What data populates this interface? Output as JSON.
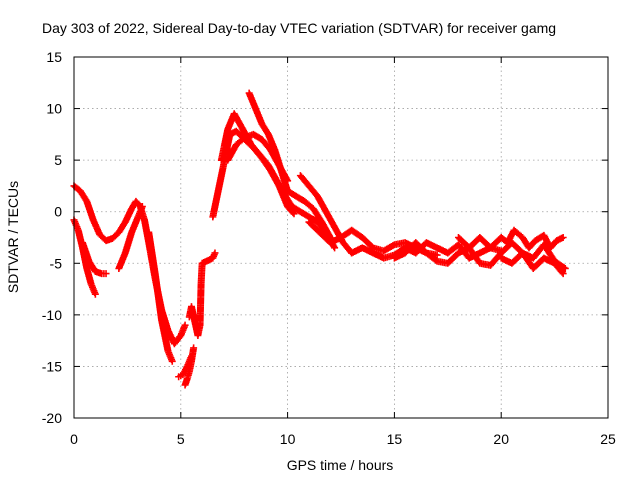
{
  "chart_data": {
    "type": "scatter",
    "title": "Day 303 of 2022, Sidereal Day-to-day VTEC variation (SDTVAR) for receiver gamg",
    "xlabel": "GPS time / hours",
    "ylabel": "SDTVAR / TECUs",
    "xlim": [
      0,
      25
    ],
    "ylim": [
      -20,
      15
    ],
    "xticks": [
      0,
      5,
      10,
      15,
      20,
      25
    ],
    "yticks": [
      -20,
      -15,
      -10,
      -5,
      0,
      5,
      10,
      15
    ],
    "grid": true,
    "marker": "+",
    "color": "#ff0000",
    "series": [
      {
        "name": "satellite-track-1",
        "x": [
          0.0,
          0.3,
          0.6,
          0.9,
          1.2,
          1.5,
          1.8,
          2.1,
          2.4,
          2.7,
          2.9,
          3.1,
          3.3,
          3.5,
          3.8,
          4.1,
          4.4,
          4.7,
          5.0,
          5.2
        ],
        "y": [
          2.5,
          2.0,
          1.0,
          -0.8,
          -2.2,
          -2.8,
          -2.6,
          -2.0,
          -1.0,
          0.3,
          1.0,
          0.5,
          -0.8,
          -3.0,
          -6.5,
          -9.5,
          -11.5,
          -12.8,
          -12.0,
          -11.0
        ]
      },
      {
        "name": "satellite-track-2",
        "x": [
          0.0,
          0.2,
          0.4,
          0.6,
          0.8,
          1.0
        ],
        "y": [
          -0.8,
          -1.8,
          -3.5,
          -5.5,
          -7.0,
          -8.0
        ]
      },
      {
        "name": "satellite-track-3",
        "x": [
          0.4,
          0.7,
          1.0,
          1.3,
          1.5
        ],
        "y": [
          -3.0,
          -4.8,
          -5.8,
          -6.0,
          -6.0
        ]
      },
      {
        "name": "satellite-track-4",
        "x": [
          2.1,
          2.4,
          2.7,
          3.0,
          3.2
        ],
        "y": [
          -5.5,
          -4.0,
          -2.0,
          -0.5,
          0.5
        ]
      },
      {
        "name": "satellite-track-5",
        "x": [
          3.5,
          3.8,
          4.1,
          4.4,
          4.6
        ],
        "y": [
          -2.0,
          -6.0,
          -10.5,
          -13.5,
          -14.5
        ]
      },
      {
        "name": "satellite-track-6",
        "x": [
          4.9,
          5.1,
          5.3,
          5.5
        ],
        "y": [
          -16.0,
          -15.8,
          -15.0,
          -14.0
        ]
      },
      {
        "name": "satellite-track-7",
        "x": [
          5.2,
          5.3,
          5.4,
          5.5,
          5.6
        ],
        "y": [
          -16.8,
          -16.2,
          -15.5,
          -14.5,
          -13.2
        ]
      },
      {
        "name": "isolated-points",
        "x": [
          5.4,
          5.5,
          5.8,
          5.9,
          5.95,
          6.0,
          6.5,
          6.6
        ],
        "y": [
          -10.2,
          -9.2,
          -12.0,
          -11.0,
          -7.0,
          -5.0,
          -4.5,
          -4.0
        ]
      },
      {
        "name": "satellite-track-8",
        "x": [
          6.5,
          6.8,
          7.1,
          7.3,
          7.6,
          8.0,
          8.4,
          8.8,
          9.2,
          9.6,
          10.0,
          10.3
        ],
        "y": [
          -0.5,
          2.5,
          5.5,
          7.5,
          7.8,
          7.0,
          6.2,
          5.2,
          4.0,
          2.5,
          0.5,
          -0.2
        ]
      },
      {
        "name": "satellite-track-9",
        "x": [
          6.9,
          7.2,
          7.5,
          7.9,
          8.3,
          8.7,
          9.1,
          9.5,
          9.9,
          10.2,
          10.6,
          11.0,
          11.4,
          11.8,
          12.2
        ],
        "y": [
          5.0,
          8.0,
          9.5,
          8.0,
          6.5,
          5.5,
          4.5,
          3.0,
          1.5,
          0.5,
          0.0,
          -0.5,
          -1.0,
          -2.0,
          -3.5
        ]
      },
      {
        "name": "satellite-track-10",
        "x": [
          8.2,
          8.5,
          8.8,
          9.1,
          9.4,
          9.7,
          10.0,
          10.4,
          10.8,
          11.2,
          11.6,
          12.0
        ],
        "y": [
          11.5,
          10.0,
          8.5,
          7.5,
          6.0,
          4.0,
          2.0,
          1.5,
          1.0,
          0.3,
          -1.0,
          -2.5
        ]
      },
      {
        "name": "satellite-track-11",
        "x": [
          7.2,
          7.6,
          8.0,
          8.4,
          8.8,
          9.2,
          9.6,
          10.0
        ],
        "y": [
          5.0,
          6.5,
          7.2,
          7.5,
          7.0,
          6.0,
          4.5,
          3.0
        ]
      },
      {
        "name": "satellite-track-12",
        "x": [
          10.6,
          11.0,
          11.4,
          11.8,
          12.2,
          12.6,
          13.0
        ],
        "y": [
          3.5,
          2.5,
          1.5,
          0.0,
          -1.5,
          -3.0,
          -4.0
        ]
      },
      {
        "name": "satellite-track-13",
        "x": [
          11.0,
          11.5,
          12.0,
          12.5,
          13.0,
          13.5,
          14.0,
          14.5,
          15.0,
          15.5,
          16.0,
          16.5,
          17.0
        ],
        "y": [
          -1.0,
          -2.0,
          -3.0,
          -2.5,
          -1.8,
          -2.5,
          -3.5,
          -3.8,
          -3.2,
          -3.0,
          -3.5,
          -4.0,
          -4.2
        ]
      },
      {
        "name": "satellite-track-14",
        "x": [
          13.0,
          13.5,
          14.0,
          14.5,
          15.0,
          15.5,
          16.0,
          16.5,
          17.0,
          17.5,
          18.0,
          18.5,
          19.0,
          19.5,
          20.0
        ],
        "y": [
          -4.0,
          -3.5,
          -4.0,
          -4.5,
          -4.2,
          -3.5,
          -4.0,
          -3.0,
          -3.5,
          -4.0,
          -3.2,
          -4.5,
          -4.0,
          -3.5,
          -3.8
        ]
      },
      {
        "name": "satellite-track-15",
        "x": [
          15.0,
          15.5,
          16.0,
          16.5,
          17.0,
          17.5,
          18.0,
          18.5,
          19.0,
          19.5,
          20.0,
          20.5,
          21.0,
          21.5,
          22.0,
          22.5,
          23.0
        ],
        "y": [
          -4.5,
          -4.0,
          -3.0,
          -4.0,
          -4.8,
          -5.0,
          -4.0,
          -3.5,
          -5.0,
          -5.2,
          -4.0,
          -3.0,
          -4.0,
          -4.5,
          -3.2,
          -4.8,
          -5.5
        ]
      },
      {
        "name": "satellite-track-16",
        "x": [
          18.0,
          18.5,
          19.0,
          19.5,
          20.0,
          20.3,
          20.6,
          21.0,
          21.3,
          21.6,
          22.0,
          22.3,
          22.6,
          22.9
        ],
        "y": [
          -2.5,
          -3.5,
          -2.5,
          -3.5,
          -2.5,
          -3.0,
          -1.8,
          -2.5,
          -3.5,
          -2.8,
          -2.3,
          -3.5,
          -2.8,
          -2.5
        ]
      },
      {
        "name": "satellite-track-17",
        "x": [
          20.0,
          20.5,
          21.0,
          21.5,
          22.0,
          22.5,
          22.9
        ],
        "y": [
          -4.5,
          -5.0,
          -4.0,
          -5.5,
          -4.5,
          -5.0,
          -6.0
        ]
      }
    ]
  }
}
